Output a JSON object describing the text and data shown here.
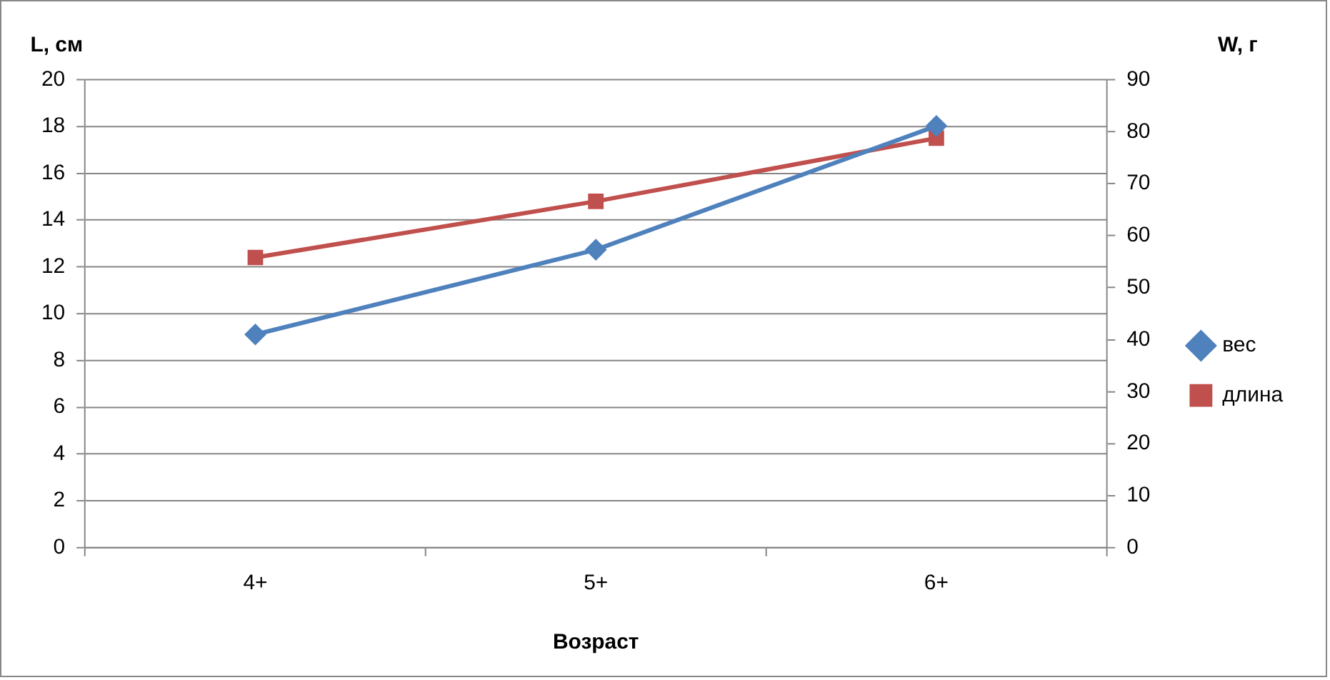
{
  "chart_data": {
    "type": "line",
    "xlabel": "Возраст",
    "ylabel": "L, см",
    "y2label": "W, г",
    "categories": [
      "4+",
      "5+",
      "6+"
    ],
    "series": [
      {
        "name": "длина",
        "color": "#c0504d",
        "values": [
          12.4,
          14.8,
          17.5
        ],
        "marker": "square"
      },
      {
        "name": "вес",
        "color": "#4f81bd",
        "values": [
          41.0,
          57.3,
          81.1
        ],
        "marker": "diamond",
        "axis": "y2"
      }
    ],
    "ylim": [
      0,
      20
    ],
    "yticks": [
      0,
      2,
      4,
      6,
      8,
      10,
      12,
      14,
      16,
      18,
      20
    ],
    "y2lim": [
      0,
      90
    ],
    "y2ticks": [
      0,
      10,
      20,
      30,
      40,
      50,
      60,
      70,
      80,
      90
    ],
    "grid": "y",
    "legend": "right",
    "line_style": "solid"
  }
}
